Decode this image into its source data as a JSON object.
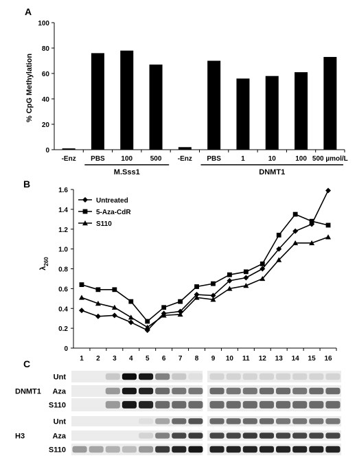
{
  "panels": [
    {
      "label": "A",
      "chart_data": {
        "type": "bar",
        "categories": [
          "-Enz",
          "PBS",
          "100",
          "500",
          "-Enz",
          "PBS",
          "1",
          "10",
          "100",
          "500 µmol/L"
        ],
        "values": [
          1,
          76,
          78,
          67,
          2,
          70,
          56,
          58,
          61,
          73
        ],
        "ylabel": "% CpG Methylation",
        "ylim": [
          0,
          100
        ],
        "yticks": [
          0,
          20,
          40,
          60,
          80,
          100
        ],
        "groups": [
          {
            "label": "M.Sss1",
            "from": 1,
            "to": 3
          },
          {
            "label": "DNMT1",
            "from": 5,
            "to": 9
          }
        ],
        "bar_color": "#000000"
      }
    },
    {
      "label": "B",
      "chart_data": {
        "type": "line",
        "x": [
          1,
          2,
          3,
          4,
          5,
          6,
          7,
          8,
          9,
          10,
          11,
          12,
          13,
          14,
          15,
          16
        ],
        "ylabel": "λ260",
        "ylabel_main": "λ",
        "ylabel_sub": "260",
        "ylim": [
          0,
          1.6
        ],
        "yticks": [
          "0",
          "0.2",
          "0.4",
          "0.6",
          "0.8",
          "1.0",
          "1.2",
          "1.4",
          "1.6"
        ],
        "legend_position": "top-left",
        "series": [
          {
            "name": "Untreated",
            "marker": "diamond",
            "values": [
              0.38,
              0.32,
              0.33,
              0.26,
              0.18,
              0.35,
              0.37,
              0.54,
              0.53,
              0.68,
              0.71,
              0.8,
              1.0,
              1.18,
              1.25,
              1.59
            ]
          },
          {
            "name": "5-Aza-CdR",
            "marker": "square",
            "values": [
              0.64,
              0.59,
              0.59,
              0.47,
              0.27,
              0.41,
              0.47,
              0.62,
              0.65,
              0.74,
              0.77,
              0.85,
              1.14,
              1.35,
              1.28,
              1.24
            ]
          },
          {
            "name": "S110",
            "marker": "triangle",
            "values": [
              0.51,
              0.45,
              0.41,
              0.31,
              0.21,
              0.33,
              0.34,
              0.51,
              0.49,
              0.6,
              0.63,
              0.7,
              0.89,
              1.06,
              1.06,
              1.12
            ]
          }
        ]
      }
    },
    {
      "label": "C",
      "blot": {
        "groups": [
          {
            "label": "DNMT1",
            "rows": [
              "Unt",
              "Aza",
              "S110"
            ]
          },
          {
            "label": "H3",
            "rows": [
              "Unt",
              "Aza",
              "S110"
            ]
          }
        ],
        "intensity": {
          "DNMT1": [
            [
              0,
              0,
              0.15,
              0.95,
              0.9,
              0.45,
              0.15,
              0.05,
              0.1,
              0.1,
              0.1,
              0.1,
              0.1,
              0.1,
              0.1,
              0.1
            ],
            [
              0,
              0,
              0.35,
              0.9,
              0.85,
              0.55,
              0.5,
              0.5,
              0.55,
              0.5,
              0.5,
              0.55,
              0.55,
              0.5,
              0.55,
              0.55
            ],
            [
              0,
              0,
              0.35,
              0.9,
              0.85,
              0.55,
              0.55,
              0.55,
              0.55,
              0.55,
              0.55,
              0.55,
              0.55,
              0.55,
              0.55,
              0.55
            ]
          ],
          "H3": [
            [
              0,
              0,
              0,
              0,
              0.05,
              0.3,
              0.55,
              0.65,
              0.55,
              0.55,
              0.55,
              0.55,
              0.5,
              0.5,
              0.5,
              0.5
            ],
            [
              0,
              0,
              0,
              0,
              0.1,
              0.45,
              0.7,
              0.75,
              0.7,
              0.7,
              0.75,
              0.75,
              0.7,
              0.7,
              0.7,
              0.7
            ],
            [
              0.35,
              0.3,
              0.25,
              0.2,
              0.35,
              0.75,
              0.85,
              0.9,
              0.85,
              0.85,
              0.85,
              0.85,
              0.85,
              0.85,
              0.85,
              0.85
            ]
          ]
        }
      }
    }
  ]
}
